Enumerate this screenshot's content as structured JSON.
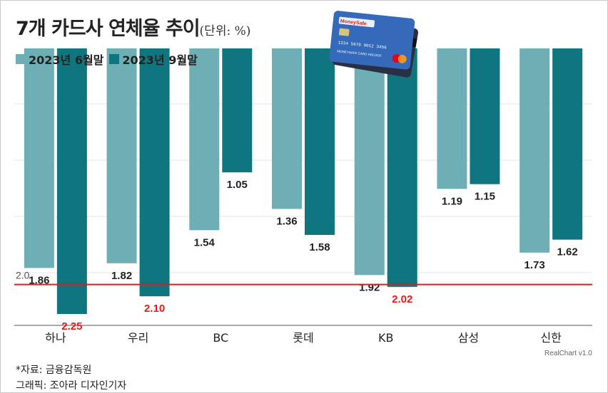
{
  "title": "7개 카드사 연체율 추이",
  "unit": "(단위: %)",
  "colors": {
    "series1": "#6eafb6",
    "series2": "#0f7680",
    "highlight": "#e41a1a",
    "reference_line": "#e41a1a"
  },
  "chart_data": {
    "type": "bar",
    "title": "7개 카드사 연체율 추이",
    "categories": [
      "하나",
      "우리",
      "BC",
      "롯데",
      "KB",
      "삼성",
      "신한"
    ],
    "series": [
      {
        "name": "2023년 6월말",
        "values": [
          1.86,
          1.82,
          1.54,
          1.36,
          1.92,
          1.19,
          1.73
        ]
      },
      {
        "name": "2023년 9월말",
        "values": [
          2.25,
          2.1,
          1.05,
          1.58,
          2.02,
          1.15,
          1.62
        ]
      }
    ],
    "reference_line": {
      "value": 2.0,
      "label": "2.0"
    },
    "highlight_rule": "value > 2.0 shown in red",
    "ylim": [
      0,
      2.4
    ],
    "grid": true,
    "legend": "top-left",
    "orientation": "bars hang down from top baseline"
  },
  "watermark": "RealChart v1.0",
  "footer": {
    "source": "*자료: 금융감독원",
    "credit": "그래픽: 조아라 디자인기자"
  },
  "card_image": {
    "brand": "MoneySafe",
    "number": "1234  5678  9012  3456",
    "holder": "MONEYSAFE CARD HOLDER",
    "icon": "credit-card-icon"
  }
}
